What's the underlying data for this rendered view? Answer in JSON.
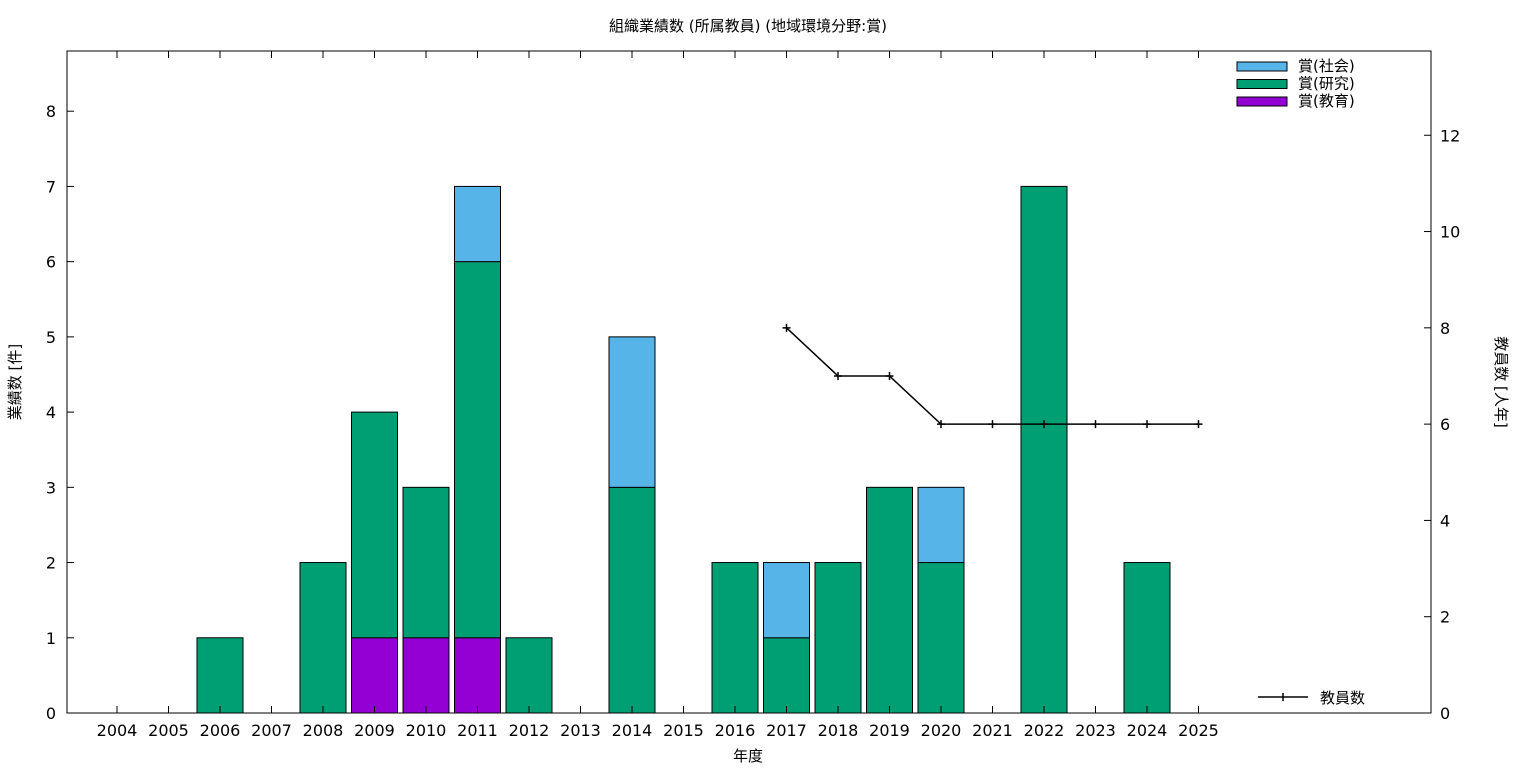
{
  "chart_data": {
    "type": "bar",
    "stacked": true,
    "title": "組織業績数 (所属教員) (地域環境分野:賞)",
    "xlabel": "年度",
    "ylabel": "業績数 [件]",
    "y2label": "教員数 [人年]",
    "ylim": [
      0,
      8.8
    ],
    "y2lim": [
      0,
      13.75
    ],
    "yticks": [
      0,
      1,
      2,
      3,
      4,
      5,
      6,
      7,
      8
    ],
    "y2ticks": [
      0,
      2,
      4,
      6,
      8,
      10,
      12
    ],
    "grid": false,
    "categories": [
      "2004",
      "2005",
      "2006",
      "2007",
      "2008",
      "2009",
      "2010",
      "2011",
      "2012",
      "2013",
      "2014",
      "2015",
      "2016",
      "2017",
      "2018",
      "2019",
      "2020",
      "2021",
      "2022",
      "2023",
      "2024",
      "2025"
    ],
    "series": [
      {
        "name": "賞(教育)",
        "color": "#9400d3",
        "values": [
          0,
          0,
          0,
          0,
          0,
          1,
          1,
          1,
          0,
          0,
          0,
          0,
          0,
          0,
          0,
          0,
          0,
          0,
          0,
          0,
          0,
          0
        ]
      },
      {
        "name": "賞(研究)",
        "color": "#009e73",
        "values": [
          0,
          0,
          1,
          0,
          2,
          3,
          2,
          5,
          1,
          0,
          3,
          0,
          2,
          1,
          2,
          3,
          2,
          0,
          7,
          0,
          2,
          0
        ]
      },
      {
        "name": "賞(社会)",
        "color": "#56b4e9",
        "values": [
          0,
          0,
          0,
          0,
          0,
          0,
          0,
          1,
          0,
          0,
          2,
          0,
          0,
          1,
          0,
          0,
          1,
          0,
          0,
          0,
          0,
          0
        ]
      }
    ],
    "legend_order": [
      "賞(社会)",
      "賞(研究)",
      "賞(教育)"
    ],
    "legend_position": "top-right",
    "line_series": {
      "name": "教員数",
      "axis": "y2",
      "color": "#000000",
      "x": [
        "2017",
        "2018",
        "2019",
        "2020",
        "2021",
        "2022",
        "2023",
        "2024",
        "2025"
      ],
      "values": [
        8,
        7,
        7,
        6,
        6,
        6,
        6,
        6,
        6
      ],
      "legend_position": "bottom-right"
    }
  }
}
